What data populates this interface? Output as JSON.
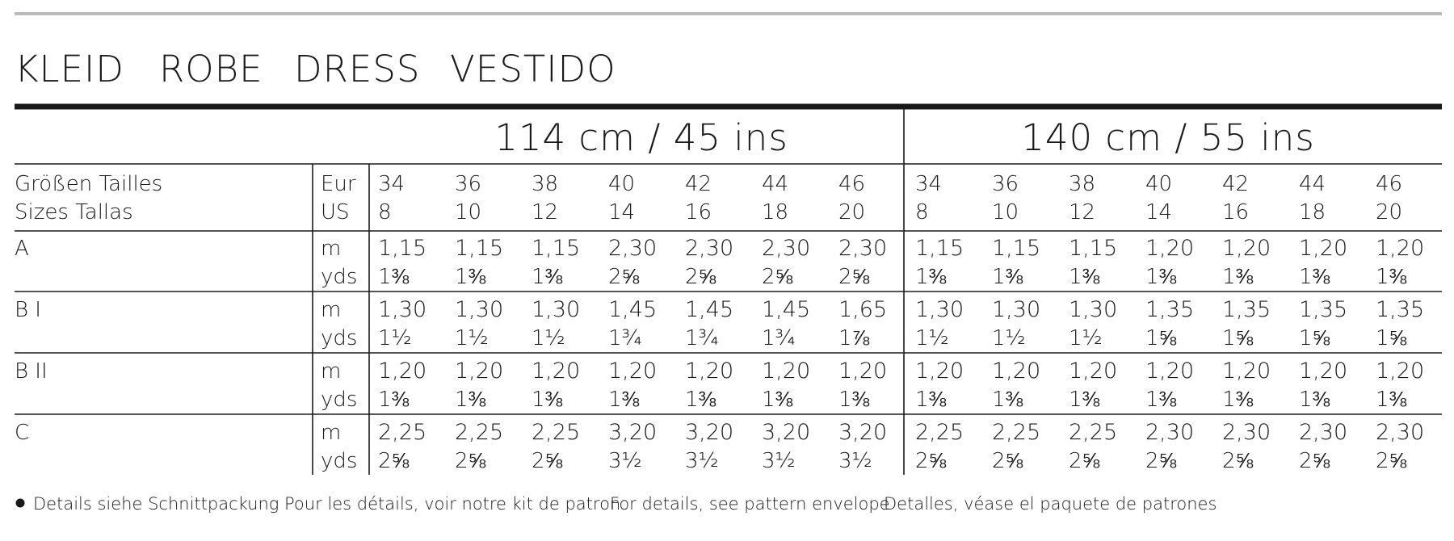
{
  "title": [
    "KLEID",
    "ROBE",
    "DRESS",
    "VESTIDO"
  ],
  "table": {
    "widths": [
      "114 cm / 45 ins",
      "140 cm / 55 ins"
    ],
    "size_label": [
      "Größen Tailles",
      "Sizes Tallas"
    ],
    "size_units": [
      "Eur",
      "US"
    ],
    "units": [
      "m",
      "yds"
    ],
    "eur": [
      34,
      36,
      38,
      40,
      42,
      44,
      46,
      34,
      36,
      38,
      40,
      42,
      44,
      46
    ],
    "us": [
      8,
      10,
      12,
      14,
      16,
      18,
      20,
      8,
      10,
      12,
      14,
      16,
      18,
      20
    ],
    "rows": [
      {
        "label": "A",
        "m": [
          "1,15",
          "1,15",
          "1,15",
          "2,30",
          "2,30",
          "2,30",
          "2,30",
          "1,15",
          "1,15",
          "1,15",
          "1,20",
          "1,20",
          "1,20",
          "1,20"
        ],
        "yds": [
          "1⅜",
          "1⅜",
          "1⅜",
          "2⅝",
          "2⅝",
          "2⅝",
          "2⅝",
          "1⅜",
          "1⅜",
          "1⅜",
          "1⅜",
          "1⅜",
          "1⅜",
          "1⅜"
        ]
      },
      {
        "label": "B I",
        "m": [
          "1,30",
          "1,30",
          "1,30",
          "1,45",
          "1,45",
          "1,45",
          "1,65",
          "1,30",
          "1,30",
          "1,30",
          "1,35",
          "1,35",
          "1,35",
          "1,35"
        ],
        "yds": [
          "1½",
          "1½",
          "1½",
          "1¾",
          "1¾",
          "1¾",
          "1⅞",
          "1½",
          "1½",
          "1½",
          "1⅝",
          "1⅝",
          "1⅝",
          "1⅝"
        ]
      },
      {
        "label": "B II",
        "m": [
          "1,20",
          "1,20",
          "1,20",
          "1,20",
          "1,20",
          "1,20",
          "1,20",
          "1,20",
          "1,20",
          "1,20",
          "1,20",
          "1,20",
          "1,20",
          "1,20"
        ],
        "yds": [
          "1⅜",
          "1⅜",
          "1⅜",
          "1⅜",
          "1⅜",
          "1⅜",
          "1⅜",
          "1⅜",
          "1⅜",
          "1⅜",
          "1⅜",
          "1⅜",
          "1⅜",
          "1⅜"
        ]
      },
      {
        "label": "C",
        "m": [
          "2,25",
          "2,25",
          "2,25",
          "3,20",
          "3,20",
          "3,20",
          "3,20",
          "2,25",
          "2,25",
          "2,25",
          "2,30",
          "2,30",
          "2,30",
          "2,30"
        ],
        "yds": [
          "2⅝",
          "2⅝",
          "2⅝",
          "3½",
          "3½",
          "3½",
          "3½",
          "2⅝",
          "2⅝",
          "2⅝",
          "2⅝",
          "2⅝",
          "2⅝",
          "2⅝"
        ]
      }
    ]
  },
  "footnote": [
    "Details siehe Schnittpackung",
    "Pour les détails, voir notre kit de patron",
    "For details, see pattern envelope",
    "Detalles, véase el paquete de patrones"
  ]
}
